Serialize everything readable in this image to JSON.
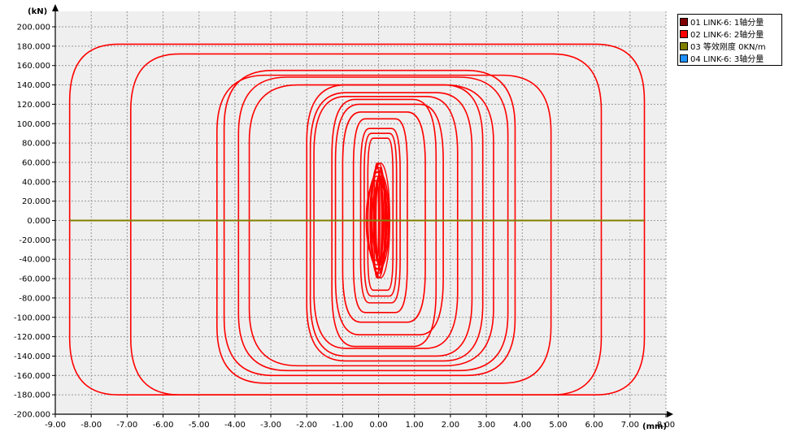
{
  "chart_data": {
    "type": "line",
    "x_unit": "(mm)",
    "y_unit": "(kN)",
    "xlim": [
      -9.0,
      8.0
    ],
    "ylim": [
      -200.0,
      200.0
    ],
    "x_ticks": [
      "-9.00",
      "-8.00",
      "-7.00",
      "-6.00",
      "-5.00",
      "-4.00",
      "-3.00",
      "-2.00",
      "-1.00",
      "0.00",
      "1.00",
      "2.00",
      "3.00",
      "4.00",
      "5.00",
      "6.00",
      "7.00",
      "8.00"
    ],
    "y_ticks": [
      "200.000",
      "180.000",
      "160.000",
      "140.000",
      "120.000",
      "100.000",
      "80.000",
      "60.000",
      "40.000",
      "20.000",
      "0.000",
      "-20.000",
      "-40.000",
      "-60.000",
      "-80.000",
      "-100.000",
      "-120.000",
      "-140.000",
      "-160.000",
      "-180.000",
      "-200.000"
    ],
    "grid": true,
    "legend_position": "top-right",
    "legend": [
      {
        "label": "01 LINK-6: 1轴分量",
        "color": "#800000"
      },
      {
        "label": "02 LINK-6: 2轴分量",
        "color": "#ff0000"
      },
      {
        "label": "03 等效刚度 0KN/m",
        "color": "#808000"
      },
      {
        "label": "04 LINK-6: 3轴分量",
        "color": "#1e90ff"
      }
    ],
    "hysteresis_loops": [
      {
        "xmin": -8.6,
        "xmax": 7.4,
        "ymin": -180,
        "ymax": 182
      },
      {
        "xmin": -6.9,
        "xmax": 6.2,
        "ymin": -180,
        "ymax": 172
      },
      {
        "xmin": -4.5,
        "xmax": 4.8,
        "ymin": -168,
        "ymax": 150
      },
      {
        "xmin": -4.3,
        "xmax": 3.8,
        "ymin": -160,
        "ymax": 155
      },
      {
        "xmin": -3.9,
        "xmax": 3.6,
        "ymin": -155,
        "ymax": 148
      },
      {
        "xmin": -3.6,
        "xmax": 3.2,
        "ymin": -150,
        "ymax": 140
      },
      {
        "xmin": -2.0,
        "xmax": 2.9,
        "ymin": -145,
        "ymax": 140
      },
      {
        "xmin": -1.9,
        "xmax": 2.6,
        "ymin": -140,
        "ymax": 132
      },
      {
        "xmin": -1.8,
        "xmax": 2.2,
        "ymin": -132,
        "ymax": 128
      },
      {
        "xmin": -1.3,
        "xmax": 1.6,
        "ymin": -130,
        "ymax": 125
      },
      {
        "xmin": -1.2,
        "xmax": 1.8,
        "ymin": -118,
        "ymax": 120
      },
      {
        "xmin": -1.0,
        "xmax": 1.3,
        "ymin": -105,
        "ymax": 112
      },
      {
        "xmin": -0.7,
        "xmax": 0.8,
        "ymin": -95,
        "ymax": 105
      },
      {
        "xmin": -0.5,
        "xmax": 0.6,
        "ymin": -85,
        "ymax": 95
      },
      {
        "xmin": -0.4,
        "xmax": 0.5,
        "ymin": -78,
        "ymax": 90
      },
      {
        "xmin": -0.3,
        "xmax": 0.4,
        "ymin": -72,
        "ymax": 85
      }
    ],
    "stiffness_line": {
      "x": [
        -8.6,
        7.4
      ],
      "y": [
        0,
        0
      ]
    }
  }
}
